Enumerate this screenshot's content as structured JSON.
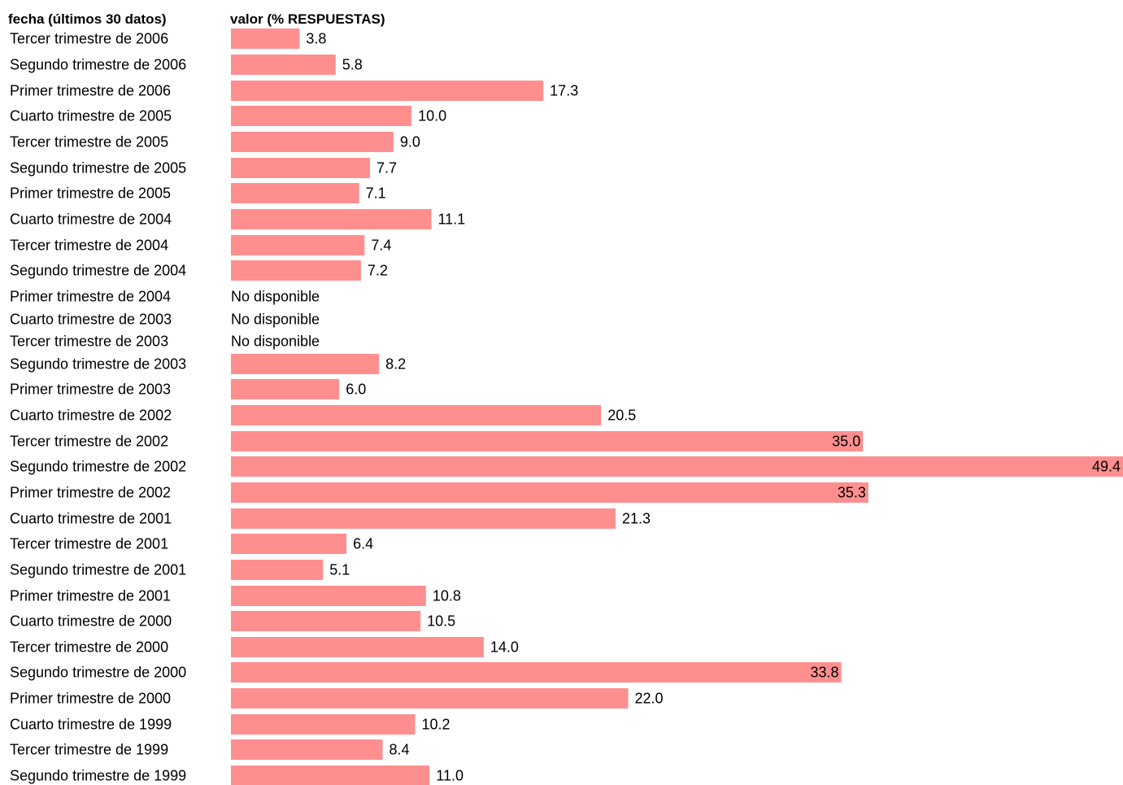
{
  "chart_data": {
    "type": "bar",
    "orientation": "horizontal",
    "header_category": "fecha (últimos 30 datos)",
    "header_value": "valor (% RESPUESTAS)",
    "bar_color": "#ff8f8f",
    "missing_label": "No disponible",
    "categories": [
      "Tercer trimestre de 2006",
      "Segundo trimestre de 2006",
      "Primer trimestre de 2006",
      "Cuarto trimestre de 2005",
      "Tercer trimestre de 2005",
      "Segundo trimestre de 2005",
      "Primer trimestre de 2005",
      "Cuarto trimestre de 2004",
      "Tercer trimestre de 2004",
      "Segundo trimestre de 2004",
      "Primer trimestre de 2004",
      "Cuarto trimestre de 2003",
      "Tercer trimestre de 2003",
      "Segundo trimestre de 2003",
      "Primer trimestre de 2003",
      "Cuarto trimestre de 2002",
      "Tercer trimestre de 2002",
      "Segundo trimestre de 2002",
      "Primer trimestre de 2002",
      "Cuarto trimestre de 2001",
      "Tercer trimestre de 2001",
      "Segundo trimestre de 2001",
      "Primer trimestre de 2001",
      "Cuarto trimestre de 2000",
      "Tercer trimestre de 2000",
      "Segundo trimestre de 2000",
      "Primer trimestre de 2000",
      "Cuarto trimestre de 1999",
      "Tercer trimestre de 1999",
      "Segundo trimestre de 1999"
    ],
    "values": [
      3.8,
      5.8,
      17.3,
      10.0,
      9.0,
      7.7,
      7.1,
      11.1,
      7.4,
      7.2,
      null,
      null,
      null,
      8.2,
      6.0,
      20.5,
      35.0,
      49.4,
      35.3,
      21.3,
      6.4,
      5.1,
      10.8,
      10.5,
      14.0,
      33.8,
      22.0,
      10.2,
      8.4,
      11.0
    ],
    "value_labels": [
      "3.8",
      "5.8",
      "17.3",
      "10.0",
      "9.0",
      "7.7",
      "7.1",
      "11.1",
      "7.4",
      "7.2",
      "No disponible",
      "No disponible",
      "No disponible",
      "8.2",
      "6.0",
      "20.5",
      "35.0",
      "49.4",
      "35.3",
      "21.3",
      "6.4",
      "5.1",
      "10.8",
      "10.5",
      "14.0",
      "33.8",
      "22.0",
      "10.2",
      "8.4",
      "11.0"
    ],
    "xlim": [
      0,
      49.4
    ],
    "grid": false,
    "legend": false
  }
}
